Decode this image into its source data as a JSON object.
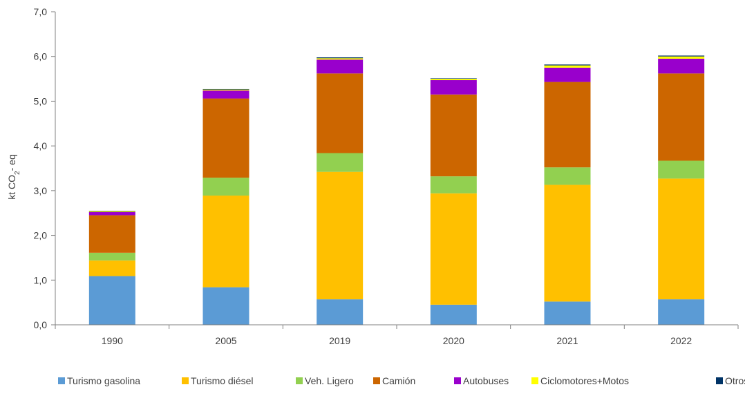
{
  "chart_data": {
    "type": "bar",
    "stacked": true,
    "title": "",
    "xlabel": "",
    "ylabel": {
      "prefix": "kt CO",
      "subscript": "2",
      "suffix": "- eq"
    },
    "ylim": [
      0,
      7
    ],
    "yticks": [
      "0,0",
      "1,0",
      "2,0",
      "3,0",
      "4,0",
      "5,0",
      "6,0",
      "7,0"
    ],
    "categories": [
      "1990",
      "2005",
      "2019",
      "2020",
      "2021",
      "2022"
    ],
    "grid": false,
    "legend_position": "bottom",
    "series": [
      {
        "name": "Turismo gasolina",
        "color": "#5b9bd5",
        "values": [
          1.09,
          0.84,
          0.57,
          0.45,
          0.52,
          0.57
        ]
      },
      {
        "name": "Turismo diésel",
        "color": "#ffc000",
        "values": [
          0.35,
          2.05,
          2.85,
          2.49,
          2.61,
          2.7
        ]
      },
      {
        "name": "Veh. Ligero",
        "color": "#92d050",
        "values": [
          0.17,
          0.4,
          0.42,
          0.38,
          0.39,
          0.4
        ]
      },
      {
        "name": "Camión",
        "color": "#cc6600",
        "values": [
          0.84,
          1.77,
          1.78,
          1.83,
          1.91,
          1.95
        ]
      },
      {
        "name": "Autobuses",
        "color": "#9900cc",
        "values": [
          0.07,
          0.18,
          0.31,
          0.32,
          0.32,
          0.33
        ]
      },
      {
        "name": "Ciclomotores+Motos",
        "color": "#ffff00",
        "values": [
          0.02,
          0.02,
          0.03,
          0.03,
          0.05,
          0.05
        ]
      },
      {
        "name": "Otros",
        "color": "#003366",
        "values": [
          0.01,
          0.01,
          0.02,
          0.01,
          0.02,
          0.02
        ]
      }
    ]
  }
}
